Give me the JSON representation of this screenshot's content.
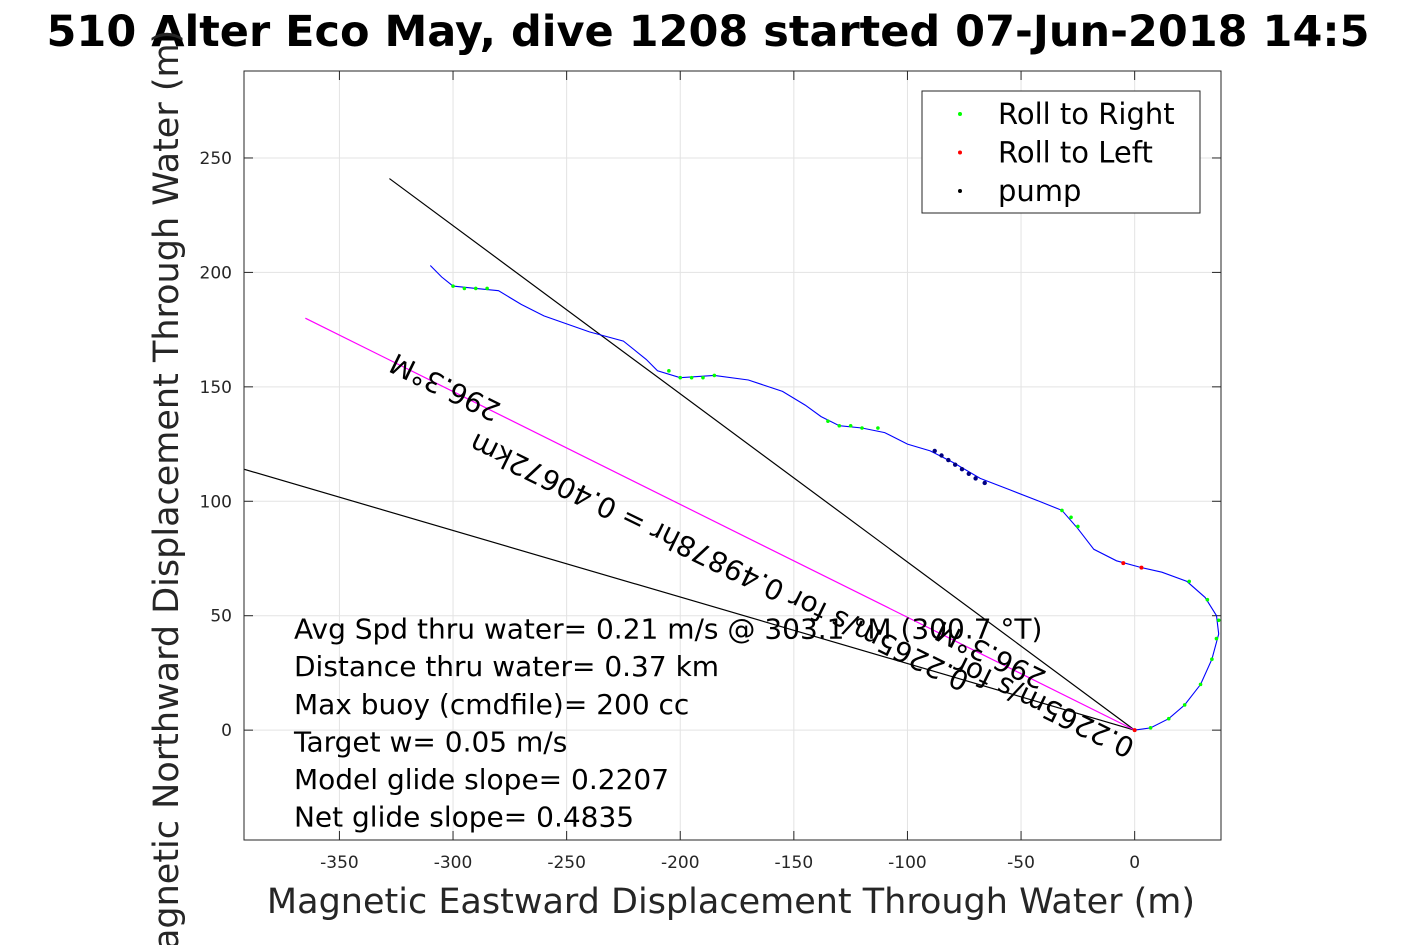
{
  "chart_data": {
    "type": "scatter",
    "title": "510 Alter Eco May, dive 1208 started 07-Jun-2018 14:5",
    "xlabel": "Magnetic Eastward Displacement Through Water (m)",
    "ylabel": "Magnetic Northward Displacement Through Water (m)",
    "xlim": [
      -392,
      38
    ],
    "ylim": [
      -48,
      288
    ],
    "xticks": [
      -350,
      -300,
      -250,
      -200,
      -150,
      -100,
      -50,
      0
    ],
    "yticks": [
      0,
      50,
      100,
      150,
      200,
      250
    ],
    "grid": true,
    "legend_position": "top-right",
    "legend": [
      {
        "label": "Roll to Right",
        "color": "#00ff00"
      },
      {
        "label": "Roll to Left",
        "color": "#ff0000"
      },
      {
        "label": "pump",
        "color": "#000000"
      }
    ],
    "track": {
      "color": "#0000ff",
      "points": [
        [
          0,
          0
        ],
        [
          7,
          1
        ],
        [
          15,
          5
        ],
        [
          22,
          11
        ],
        [
          29,
          20
        ],
        [
          34,
          31
        ],
        [
          37,
          42
        ],
        [
          36,
          50
        ],
        [
          31,
          58
        ],
        [
          23,
          65
        ],
        [
          12,
          69
        ],
        [
          3,
          71
        ],
        [
          -8,
          74
        ],
        [
          -18,
          79
        ],
        [
          -25,
          88
        ],
        [
          -32,
          96
        ],
        [
          -42,
          100
        ],
        [
          -55,
          105
        ],
        [
          -68,
          110
        ],
        [
          -80,
          117
        ],
        [
          -90,
          122
        ],
        [
          -100,
          125
        ],
        [
          -110,
          130
        ],
        [
          -120,
          132
        ],
        [
          -130,
          133
        ],
        [
          -138,
          137
        ],
        [
          -145,
          142
        ],
        [
          -155,
          148
        ],
        [
          -170,
          153
        ],
        [
          -185,
          155
        ],
        [
          -200,
          154
        ],
        [
          -210,
          157
        ],
        [
          -215,
          162
        ],
        [
          -225,
          170
        ],
        [
          -240,
          174
        ],
        [
          -260,
          181
        ],
        [
          -270,
          186
        ],
        [
          -280,
          192
        ],
        [
          -290,
          193
        ],
        [
          -300,
          194
        ],
        [
          -305,
          198
        ],
        [
          -310,
          203
        ]
      ]
    },
    "roll_right_points": [
      [
        0,
        0
      ],
      [
        7,
        1
      ],
      [
        15,
        5
      ],
      [
        22,
        11
      ],
      [
        29,
        20
      ],
      [
        34,
        31
      ],
      [
        36,
        40
      ],
      [
        37,
        48
      ],
      [
        32,
        57
      ],
      [
        24,
        65
      ],
      [
        -25,
        89
      ],
      [
        -28,
        93
      ],
      [
        -32,
        96
      ],
      [
        -113,
        132
      ],
      [
        -120,
        132
      ],
      [
        -125,
        133
      ],
      [
        -130,
        133
      ],
      [
        -135,
        135
      ],
      [
        -185,
        155
      ],
      [
        -190,
        154
      ],
      [
        -195,
        154
      ],
      [
        -200,
        154
      ],
      [
        -205,
        157
      ],
      [
        -285,
        193
      ],
      [
        -290,
        193
      ],
      [
        -295,
        193
      ],
      [
        -300,
        194
      ]
    ],
    "roll_left_points": [
      [
        0,
        0
      ],
      [
        -5,
        73
      ],
      [
        3,
        71
      ]
    ],
    "pump_points": [
      [
        -88,
        122
      ],
      [
        -85,
        120
      ],
      [
        -82,
        118
      ],
      [
        -79,
        116
      ],
      [
        -76,
        114
      ],
      [
        -73,
        112
      ],
      [
        -70,
        110
      ],
      [
        -66,
        108
      ]
    ],
    "lines": [
      {
        "name": "heading-line",
        "color": "#000000",
        "x": [
          0,
          -328
        ],
        "y": [
          0,
          241
        ]
      },
      {
        "name": "current-line",
        "color": "#000000",
        "x": [
          0,
          -392
        ],
        "y": [
          0,
          114
        ]
      },
      {
        "name": "distance-line",
        "color": "#ff00ff",
        "x": [
          0,
          -365
        ],
        "y": [
          0,
          180
        ]
      }
    ],
    "rotated_annotations": [
      {
        "text": "296.3°M",
        "x": -325,
        "y": 165,
        "angle_deg": 26
      },
      {
        "text": "0.2265m/s for 0.49878hr = 0.40672km",
        "x": -290,
        "y": 130,
        "angle_deg": 26
      },
      {
        "text": "296.3°M",
        "x": -85,
        "y": 48,
        "angle_deg": 26
      },
      {
        "text": "0.2265m/s for",
        "x": -77,
        "y": 33,
        "angle_deg": 26
      }
    ],
    "annotations": [
      "Avg Spd thru water=  0.21 m/s @ 303.1 °M (300.7 °T)",
      "Distance thru water=  0.37 km",
      "Max buoy (cmdfile)= 200 cc",
      "Target w= 0.05 m/s",
      "Model glide slope= 0.2207",
      "Net glide slope= 0.4835"
    ]
  }
}
